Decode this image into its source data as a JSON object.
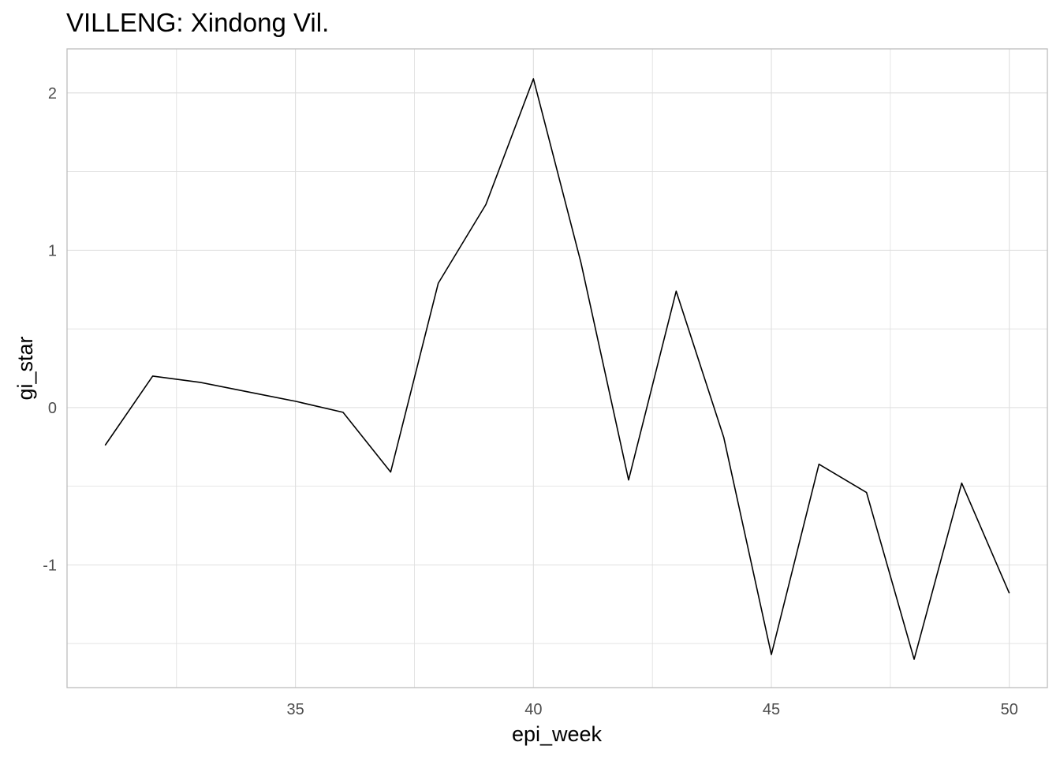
{
  "chart_data": {
    "type": "line",
    "title": "VILLENG: Xindong Vil.",
    "xlabel": "epi_week",
    "ylabel": "gi_star",
    "xlim": [
      30.2,
      50.8
    ],
    "ylim": [
      -1.78,
      2.28
    ],
    "x_ticks": [
      35,
      40,
      45,
      50
    ],
    "x_tick_labels": [
      "35",
      "40",
      "45",
      "50"
    ],
    "x_minor_ticks": [
      32.5,
      37.5,
      42.5,
      47.5
    ],
    "y_ticks": [
      -1,
      0,
      1,
      2
    ],
    "y_tick_labels": [
      "-1",
      "0",
      "1",
      "2"
    ],
    "y_minor_ticks": [
      -1.5,
      -0.5,
      0.5,
      1.5
    ],
    "grid": true,
    "legend": "none",
    "colors": {
      "line": "#000000",
      "grid": "#dedede",
      "panel_border": "#bdbdbd",
      "tick_text": "#4d4d4d"
    },
    "series": [
      {
        "x": [
          31,
          32,
          33,
          34,
          35,
          36,
          37,
          38,
          39,
          40,
          41,
          42,
          43,
          44,
          45,
          46,
          47,
          48,
          49,
          50
        ],
        "y": [
          -0.24,
          0.2,
          0.16,
          0.1,
          0.04,
          -0.03,
          -0.41,
          0.79,
          1.29,
          2.09,
          0.92,
          -0.46,
          0.74,
          -0.19,
          -1.57,
          -0.36,
          -0.54,
          -1.6,
          -0.48,
          -1.18
        ]
      }
    ]
  }
}
